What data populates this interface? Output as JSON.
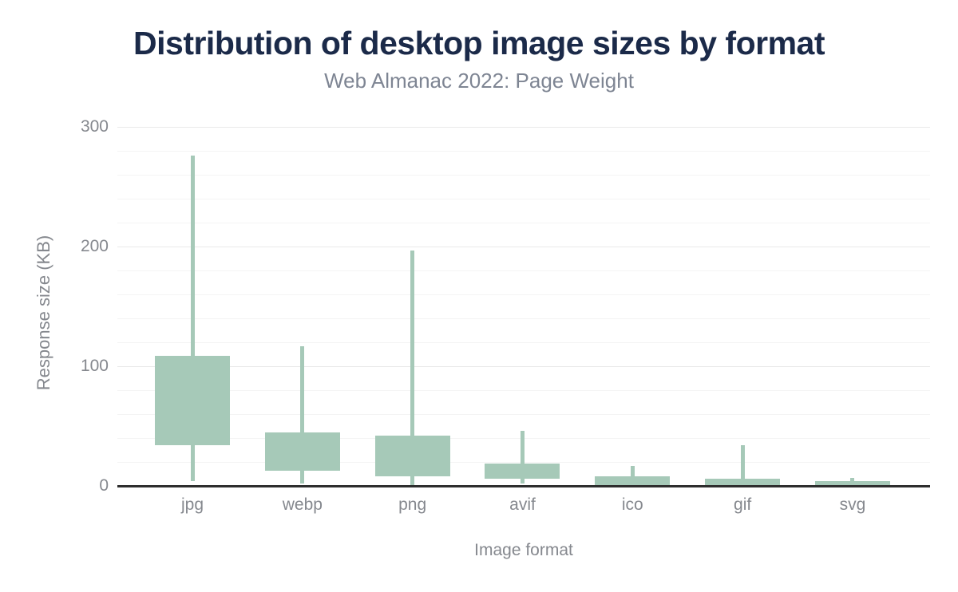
{
  "chart_data": {
    "type": "boxplot",
    "title": "Distribution of desktop image sizes by format",
    "subtitle": "Web Almanac 2022: Page Weight",
    "xlabel": "Image format",
    "ylabel": "Response size (KB)",
    "units": "KB",
    "ylim": [
      0,
      300
    ],
    "y_ticks": [
      0,
      100,
      200,
      300
    ],
    "y_minor_grid_step": 20,
    "grid": true,
    "legend": "none",
    "categories": [
      "jpg",
      "webp",
      "png",
      "avif",
      "ico",
      "gif",
      "svg"
    ],
    "boxes": [
      {
        "category": "jpg",
        "whisker_min": 4,
        "q1": 34,
        "q3": 109,
        "whisker_max": 276
      },
      {
        "category": "webp",
        "whisker_min": 2,
        "q1": 13,
        "q3": 45,
        "whisker_max": 117
      },
      {
        "category": "png",
        "whisker_min": 0,
        "q1": 8,
        "q3": 42,
        "whisker_max": 197
      },
      {
        "category": "avif",
        "whisker_min": 2,
        "q1": 6,
        "q3": 19,
        "whisker_max": 46
      },
      {
        "category": "ico",
        "whisker_min": 0,
        "q1": 1,
        "q3": 8,
        "whisker_max": 17
      },
      {
        "category": "gif",
        "whisker_min": 0,
        "q1": 1,
        "q3": 6,
        "whisker_max": 34
      },
      {
        "category": "svg",
        "whisker_min": 0,
        "q1": 1,
        "q3": 4,
        "whisker_max": 7
      }
    ],
    "colors": {
      "box_fill": "#a6c9b8",
      "title": "#1b2a49",
      "subtitle": "#7e8593",
      "axis_text": "#85888e",
      "grid_major": "#e9e9e9",
      "grid_minor": "#f4f4f4",
      "axis_line": "#2d2d2d",
      "background": "#ffffff"
    }
  }
}
